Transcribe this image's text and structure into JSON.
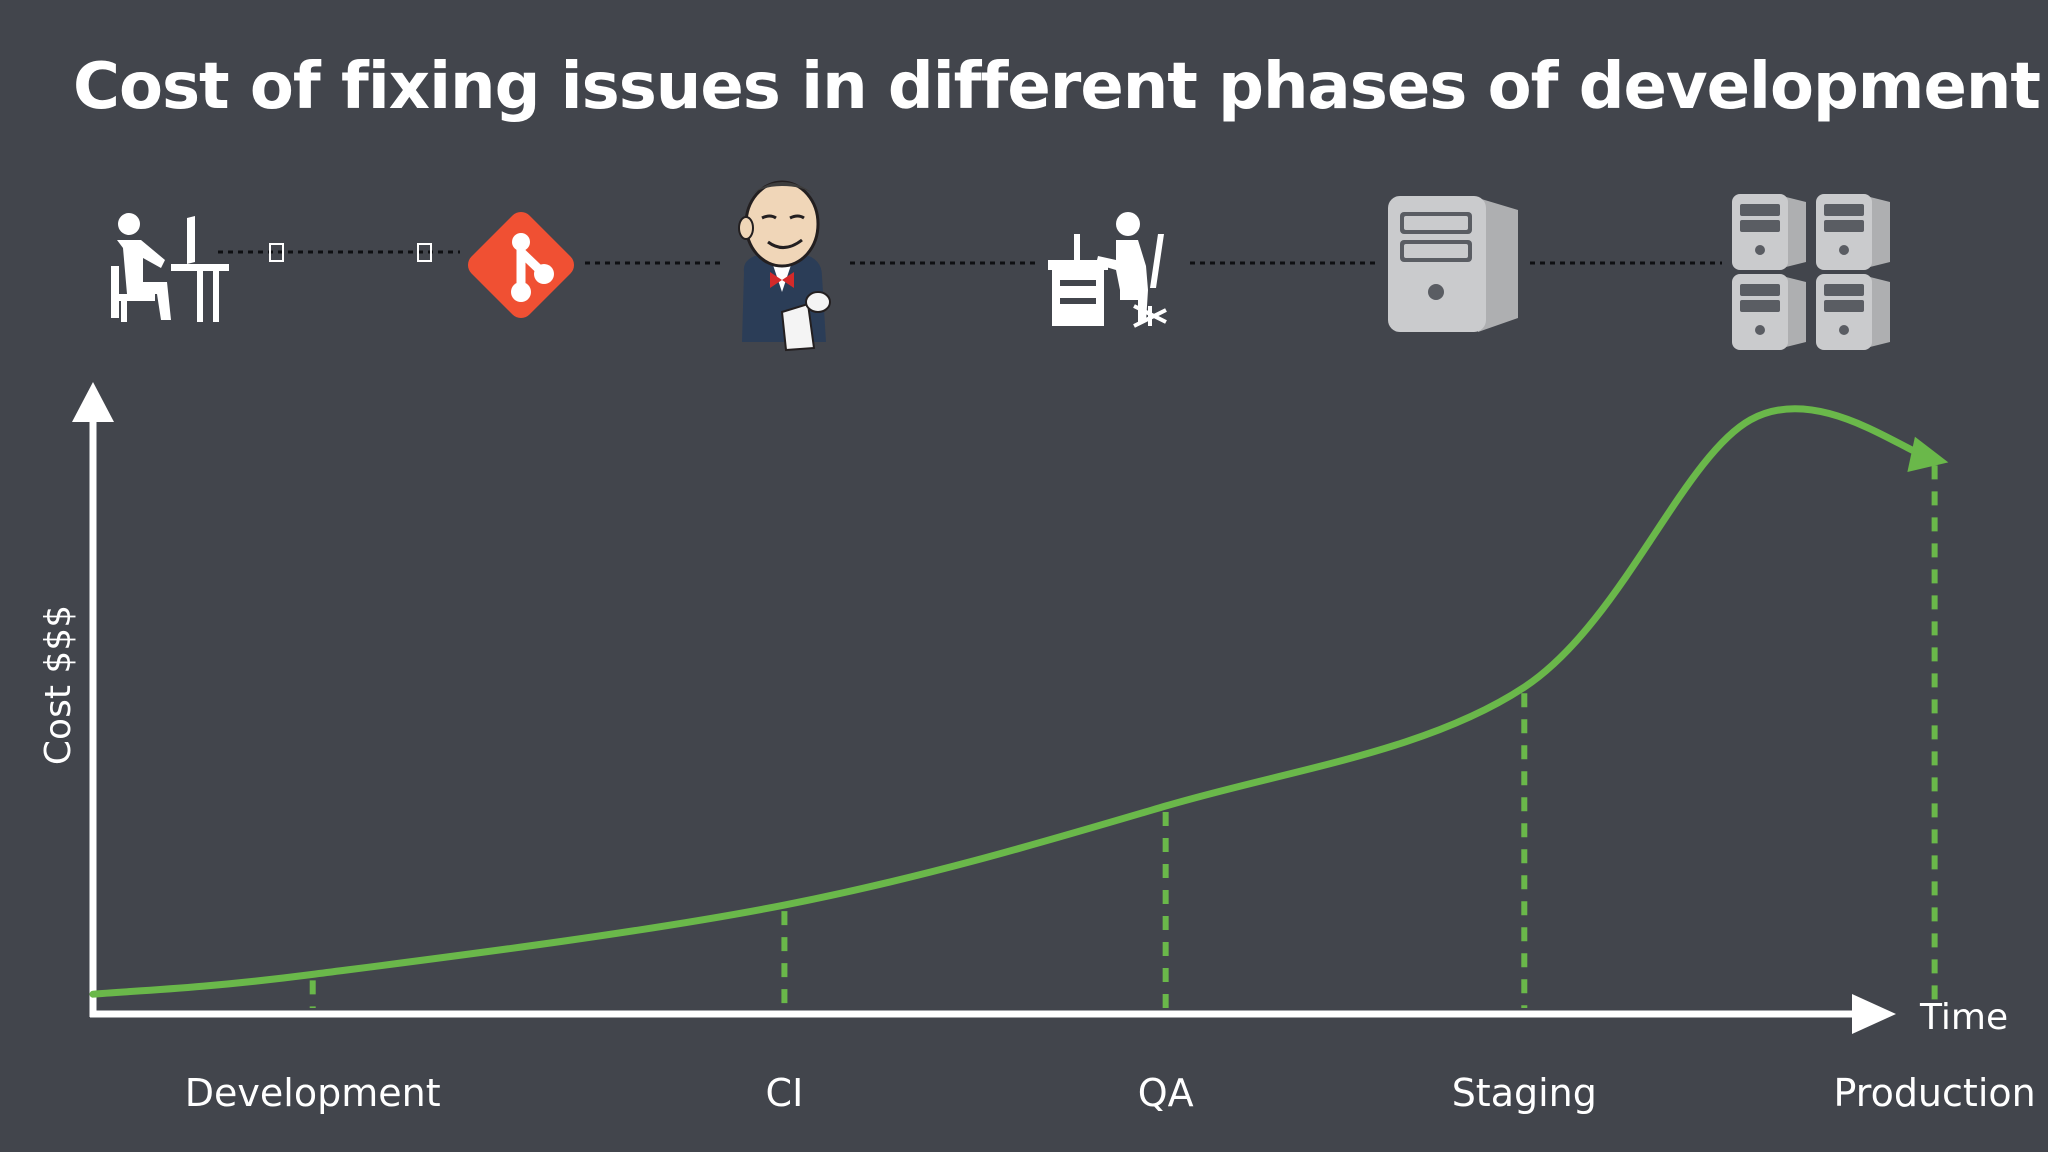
{
  "theme": {
    "background": "#42454c",
    "curve_color": "#6ab84a",
    "axis_color": "#ffffff",
    "dotted_line_color": "#0e0f12",
    "git_color": "#f05033",
    "server_color": "#c8c9cb"
  },
  "slide": {
    "title": "Cost of fixing issues in different phases of development"
  },
  "icons": [
    {
      "name": "developer-at-desk-icon"
    },
    {
      "name": "git-logo-icon"
    },
    {
      "name": "jenkins-butler-icon"
    },
    {
      "name": "qa-tester-at-desk-icon"
    },
    {
      "name": "server-tower-icon"
    },
    {
      "name": "server-cluster-icon"
    }
  ],
  "chart_data": {
    "type": "line",
    "title": "Cost of fixing issues in different phases of development",
    "xlabel": "Time",
    "ylabel": "Cost $$$",
    "categories": [
      "Development",
      "CI",
      "QA",
      "Staging",
      "Production"
    ],
    "series": [
      {
        "values": [
          4,
          11,
          21,
          33,
          56
        ]
      }
    ],
    "xlim": [
      0,
      5.5
    ],
    "ylim": [
      0,
      62
    ],
    "curve_start": {
      "x": 0,
      "y": 2
    },
    "curve_end": {
      "x": 5.13,
      "y": 60
    },
    "tick_x": [
      0.68,
      2.14,
      3.32,
      4.43,
      5.7
    ],
    "grid": false,
    "legend": "none",
    "drop_lines": "dashed"
  }
}
